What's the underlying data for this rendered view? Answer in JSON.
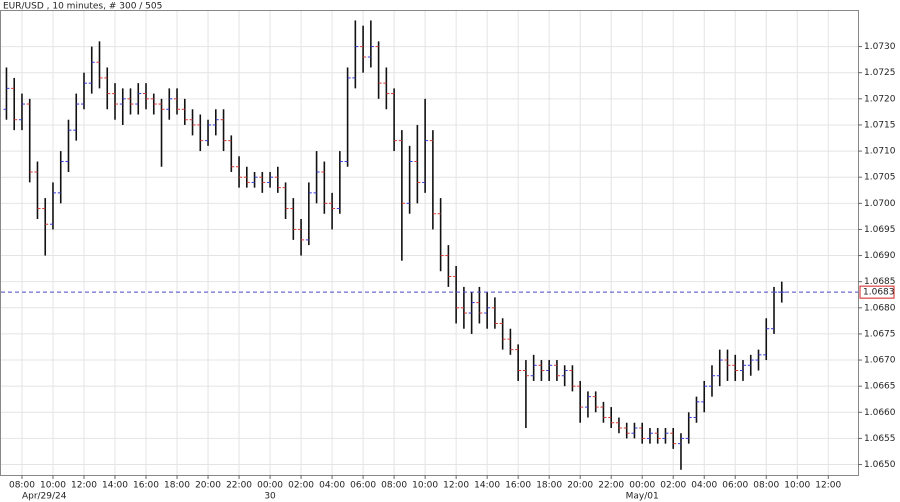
{
  "chart_data": {
    "type": "ohlc",
    "title": "EUR/USD , 10 minutes, # 300 / 505",
    "x": [
      "2024-04-29T07:00",
      "2024-04-29T07:30",
      "2024-04-29T08:00",
      "2024-04-29T08:30",
      "2024-04-29T09:00",
      "2024-04-29T09:30",
      "2024-04-29T10:00",
      "2024-04-29T10:30",
      "2024-04-29T11:00",
      "2024-04-29T11:30",
      "2024-04-29T12:00",
      "2024-04-29T12:30",
      "2024-04-29T13:00",
      "2024-04-29T13:30",
      "2024-04-29T14:00",
      "2024-04-29T14:30",
      "2024-04-29T15:00",
      "2024-04-29T15:30",
      "2024-04-29T16:00",
      "2024-04-29T16:30",
      "2024-04-29T17:00",
      "2024-04-29T17:30",
      "2024-04-29T18:00",
      "2024-04-29T18:30",
      "2024-04-29T19:00",
      "2024-04-29T19:30",
      "2024-04-29T20:00",
      "2024-04-29T20:30",
      "2024-04-29T21:00",
      "2024-04-29T21:30",
      "2024-04-29T22:00",
      "2024-04-29T22:30",
      "2024-04-29T23:00",
      "2024-04-29T23:30",
      "2024-04-30T00:00",
      "2024-04-30T00:30",
      "2024-04-30T01:00",
      "2024-04-30T01:30",
      "2024-04-30T02:00",
      "2024-04-30T02:30",
      "2024-04-30T03:00",
      "2024-04-30T03:30",
      "2024-04-30T04:00",
      "2024-04-30T04:30",
      "2024-04-30T05:00",
      "2024-04-30T05:30",
      "2024-04-30T06:00",
      "2024-04-30T06:30",
      "2024-04-30T07:00",
      "2024-04-30T07:30",
      "2024-04-30T08:00",
      "2024-04-30T08:30",
      "2024-04-30T09:00",
      "2024-04-30T09:30",
      "2024-04-30T10:00",
      "2024-04-30T10:30",
      "2024-04-30T11:00",
      "2024-04-30T11:30",
      "2024-04-30T12:00",
      "2024-04-30T12:30",
      "2024-04-30T13:00",
      "2024-04-30T13:30",
      "2024-04-30T14:00",
      "2024-04-30T14:30",
      "2024-04-30T15:00",
      "2024-04-30T15:30",
      "2024-04-30T16:00",
      "2024-04-30T16:30",
      "2024-04-30T17:00",
      "2024-04-30T17:30",
      "2024-04-30T18:00",
      "2024-04-30T18:30",
      "2024-04-30T19:00",
      "2024-04-30T19:30",
      "2024-04-30T20:00",
      "2024-04-30T20:30",
      "2024-04-30T21:00",
      "2024-04-30T21:30",
      "2024-04-30T22:00",
      "2024-04-30T22:30",
      "2024-04-30T23:00",
      "2024-04-30T23:30",
      "2024-05-01T00:00",
      "2024-05-01T00:30",
      "2024-05-01T01:00",
      "2024-05-01T01:30",
      "2024-05-01T02:00",
      "2024-05-01T02:30",
      "2024-05-01T03:00",
      "2024-05-01T03:30",
      "2024-05-01T04:00",
      "2024-05-01T04:30",
      "2024-05-01T05:00",
      "2024-05-01T05:30",
      "2024-05-01T06:00",
      "2024-05-01T06:30",
      "2024-05-01T07:00",
      "2024-05-01T07:30",
      "2024-05-01T08:00",
      "2024-05-01T08:30",
      "2024-05-01T09:00"
    ],
    "open": [
      1.0718,
      1.0722,
      1.0716,
      1.0719,
      1.0706,
      1.0699,
      1.0696,
      1.0702,
      1.0708,
      1.0714,
      1.0719,
      1.0723,
      1.0727,
      1.0724,
      1.0721,
      1.0719,
      1.072,
      1.0719,
      1.0721,
      1.072,
      1.0719,
      1.0718,
      1.072,
      1.0718,
      1.0716,
      1.0715,
      1.0712,
      1.0715,
      1.0716,
      1.0712,
      1.0707,
      1.0705,
      1.0704,
      1.0705,
      1.0704,
      1.0705,
      1.0703,
      1.0699,
      1.0695,
      1.0693,
      1.0702,
      1.0706,
      1.07,
      1.0699,
      1.0708,
      1.0724,
      1.073,
      1.0728,
      1.073,
      1.0723,
      1.0721,
      1.0712,
      1.07,
      1.0708,
      1.0704,
      1.0712,
      1.0698,
      1.069,
      1.0686,
      1.068,
      1.0679,
      1.0681,
      1.0679,
      1.068,
      1.0677,
      1.0674,
      1.0672,
      1.0668,
      1.0667,
      1.0669,
      1.0668,
      1.0669,
      1.0667,
      1.0668,
      1.0665,
      1.0661,
      1.0663,
      1.0661,
      1.0659,
      1.0658,
      1.0657,
      1.0656,
      1.0657,
      1.0655,
      1.0656,
      1.0655,
      1.0656,
      1.0654,
      1.0655,
      1.0659,
      1.0662,
      1.0665,
      1.0667,
      1.067,
      1.0669,
      1.0668,
      1.0669,
      1.067,
      1.0671,
      1.0676,
      1.0683
    ],
    "high": [
      1.0726,
      1.0724,
      1.0721,
      1.072,
      1.0708,
      1.0701,
      1.0704,
      1.071,
      1.0716,
      1.0721,
      1.0725,
      1.073,
      1.0731,
      1.0726,
      1.0723,
      1.0722,
      1.0722,
      1.0723,
      1.0723,
      1.0721,
      1.072,
      1.0722,
      1.0722,
      1.072,
      1.0718,
      1.0717,
      1.0716,
      1.0718,
      1.0718,
      1.0713,
      1.0709,
      1.0707,
      1.0706,
      1.0706,
      1.0706,
      1.0707,
      1.0704,
      1.0701,
      1.0697,
      1.0704,
      1.071,
      1.0708,
      1.0702,
      1.071,
      1.0726,
      1.0735,
      1.0734,
      1.0735,
      1.0731,
      1.0726,
      1.0722,
      1.0714,
      1.0711,
      1.0715,
      1.072,
      1.0714,
      1.0701,
      1.0692,
      1.0688,
      1.0684,
      1.0683,
      1.0684,
      1.0683,
      1.0682,
      1.0678,
      1.0676,
      1.0673,
      1.067,
      1.0671,
      1.067,
      1.067,
      1.067,
      1.0669,
      1.0669,
      1.0666,
      1.0664,
      1.0664,
      1.0662,
      1.0661,
      1.0659,
      1.0658,
      1.0658,
      1.0658,
      1.0657,
      1.0657,
      1.0657,
      1.0657,
      1.0656,
      1.066,
      1.0663,
      1.0666,
      1.0669,
      1.0672,
      1.0672,
      1.0671,
      1.067,
      1.0671,
      1.0672,
      1.0678,
      1.0684,
      1.0685
    ],
    "low": [
      1.0716,
      1.0714,
      1.0714,
      1.0704,
      1.0697,
      1.069,
      1.0695,
      1.07,
      1.0706,
      1.0712,
      1.0718,
      1.0721,
      1.0722,
      1.0718,
      1.0716,
      1.0715,
      1.0717,
      1.0717,
      1.0718,
      1.0717,
      1.0707,
      1.0716,
      1.0717,
      1.0715,
      1.0713,
      1.071,
      1.0711,
      1.0713,
      1.071,
      1.0706,
      1.0703,
      1.0703,
      1.0703,
      1.0702,
      1.0703,
      1.0702,
      1.0697,
      1.0693,
      1.069,
      1.0692,
      1.07,
      1.0698,
      1.0695,
      1.0698,
      1.0707,
      1.0722,
      1.0725,
      1.0726,
      1.072,
      1.0718,
      1.071,
      1.0689,
      1.0698,
      1.07,
      1.0702,
      1.0695,
      1.0687,
      1.0684,
      1.0677,
      1.0676,
      1.0675,
      1.0677,
      1.0676,
      1.0676,
      1.0672,
      1.0671,
      1.0666,
      1.0657,
      1.0666,
      1.0666,
      1.0666,
      1.0666,
      1.0665,
      1.0664,
      1.0658,
      1.0659,
      1.066,
      1.0658,
      1.0657,
      1.0656,
      1.0655,
      1.0655,
      1.0654,
      1.0654,
      1.0654,
      1.0654,
      1.0653,
      1.0649,
      1.0654,
      1.0658,
      1.066,
      1.0663,
      1.0665,
      1.0666,
      1.0666,
      1.0666,
      1.0667,
      1.0668,
      1.067,
      1.0675,
      1.0681
    ],
    "close": [
      1.0722,
      1.0716,
      1.0719,
      1.0706,
      1.0699,
      1.0696,
      1.0702,
      1.0708,
      1.0714,
      1.0719,
      1.0723,
      1.0727,
      1.0724,
      1.0721,
      1.0719,
      1.072,
      1.0719,
      1.0721,
      1.072,
      1.0719,
      1.0718,
      1.072,
      1.0718,
      1.0716,
      1.0715,
      1.0712,
      1.0715,
      1.0716,
      1.0712,
      1.0707,
      1.0705,
      1.0704,
      1.0705,
      1.0704,
      1.0705,
      1.0703,
      1.0699,
      1.0695,
      1.0693,
      1.0702,
      1.0706,
      1.07,
      1.0699,
      1.0708,
      1.0724,
      1.073,
      1.0728,
      1.073,
      1.0723,
      1.0721,
      1.0712,
      1.07,
      1.0708,
      1.0704,
      1.0712,
      1.0698,
      1.069,
      1.0686,
      1.068,
      1.0679,
      1.0681,
      1.0679,
      1.068,
      1.0677,
      1.0674,
      1.0672,
      1.0668,
      1.0667,
      1.0669,
      1.0668,
      1.0669,
      1.0667,
      1.0668,
      1.0665,
      1.0661,
      1.0663,
      1.0661,
      1.0659,
      1.0658,
      1.0657,
      1.0656,
      1.0657,
      1.0655,
      1.0656,
      1.0655,
      1.0656,
      1.0654,
      1.0655,
      1.0659,
      1.0662,
      1.0665,
      1.0667,
      1.067,
      1.0669,
      1.0668,
      1.0669,
      1.067,
      1.0671,
      1.0676,
      1.0683,
      1.0683
    ],
    "up_color": "#3a3ad8",
    "down_color": "#d83a3a",
    "bar_color": "#111111",
    "grid": true,
    "xlim": [
      "2024-04-29T06:35",
      "2024-05-01T13:55"
    ],
    "ylim": [
      1.0648,
      1.0737
    ],
    "yticks": [
      {
        "value": 1.065,
        "label": "1.0650"
      },
      {
        "value": 1.0655,
        "label": "1.0655"
      },
      {
        "value": 1.066,
        "label": "1.0660"
      },
      {
        "value": 1.0665,
        "label": "1.0665"
      },
      {
        "value": 1.067,
        "label": "1.0670"
      },
      {
        "value": 1.0675,
        "label": "1.0675"
      },
      {
        "value": 1.068,
        "label": "1.0680"
      },
      {
        "value": 1.0685,
        "label": "1.0685"
      },
      {
        "value": 1.069,
        "label": "1.0690"
      },
      {
        "value": 1.0695,
        "label": "1.0695"
      },
      {
        "value": 1.07,
        "label": "1.0700"
      },
      {
        "value": 1.0705,
        "label": "1.0705"
      },
      {
        "value": 1.071,
        "label": "1.0710"
      },
      {
        "value": 1.0715,
        "label": "1.0715"
      },
      {
        "value": 1.072,
        "label": "1.0720"
      },
      {
        "value": 1.0725,
        "label": "1.0725"
      },
      {
        "value": 1.073,
        "label": "1.0730"
      }
    ],
    "xticks": [
      {
        "value": "2024-04-29T08:00",
        "label": "08:00"
      },
      {
        "value": "2024-04-29T10:00",
        "label": "10:00"
      },
      {
        "value": "2024-04-29T12:00",
        "label": "12:00"
      },
      {
        "value": "2024-04-29T14:00",
        "label": "14:00"
      },
      {
        "value": "2024-04-29T16:00",
        "label": "16:00"
      },
      {
        "value": "2024-04-29T18:00",
        "label": "18:00"
      },
      {
        "value": "2024-04-29T20:00",
        "label": "20:00"
      },
      {
        "value": "2024-04-29T22:00",
        "label": "22:00"
      },
      {
        "value": "2024-04-30T00:00",
        "label": "00:00"
      },
      {
        "value": "2024-04-30T02:00",
        "label": "02:00"
      },
      {
        "value": "2024-04-30T04:00",
        "label": "04:00"
      },
      {
        "value": "2024-04-30T06:00",
        "label": "06:00"
      },
      {
        "value": "2024-04-30T08:00",
        "label": "08:00"
      },
      {
        "value": "2024-04-30T10:00",
        "label": "10:00"
      },
      {
        "value": "2024-04-30T12:00",
        "label": "12:00"
      },
      {
        "value": "2024-04-30T14:00",
        "label": "14:00"
      },
      {
        "value": "2024-04-30T16:00",
        "label": "16:00"
      },
      {
        "value": "2024-04-30T18:00",
        "label": "18:00"
      },
      {
        "value": "2024-04-30T20:00",
        "label": "20:00"
      },
      {
        "value": "2024-04-30T22:00",
        "label": "22:00"
      },
      {
        "value": "2024-05-01T00:00",
        "label": "00:00"
      },
      {
        "value": "2024-05-01T02:00",
        "label": "02:00"
      },
      {
        "value": "2024-05-01T04:00",
        "label": "04:00"
      },
      {
        "value": "2024-05-01T06:00",
        "label": "06:00"
      },
      {
        "value": "2024-05-01T08:00",
        "label": "08:00"
      },
      {
        "value": "2024-05-01T10:00",
        "label": "10:00"
      },
      {
        "value": "2024-05-01T12:00",
        "label": "12:00"
      }
    ],
    "date_labels": [
      {
        "value": "2024-04-29T08:00",
        "label": "Apr/29/24"
      },
      {
        "value": "2024-04-30T00:00",
        "label": "30"
      },
      {
        "value": "2024-05-01T00:00",
        "label": "May/01"
      }
    ],
    "last_price": {
      "value": 1.0683,
      "label": "1.0683"
    },
    "last_price_color": "#4a4ac8"
  }
}
